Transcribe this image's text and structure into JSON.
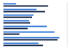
{
  "chart_data": {
    "type": "bar",
    "orientation": "horizontal",
    "categories": [
      null,
      null,
      null,
      null,
      null,
      null,
      null,
      null
    ],
    "series": [
      {
        "color": "#3b7dd8",
        "values": [
          20,
          52,
          47,
          40,
          68,
          80,
          88,
          55
        ]
      },
      {
        "color": "#1c2b4a",
        "values": [
          70,
          65,
          45,
          42,
          38,
          25,
          85,
          62
        ]
      }
    ],
    "xlim": [
      0,
      100
    ],
    "xticks": [
      0,
      25,
      50,
      75,
      100
    ],
    "grid": true,
    "tick_labels": false
  }
}
